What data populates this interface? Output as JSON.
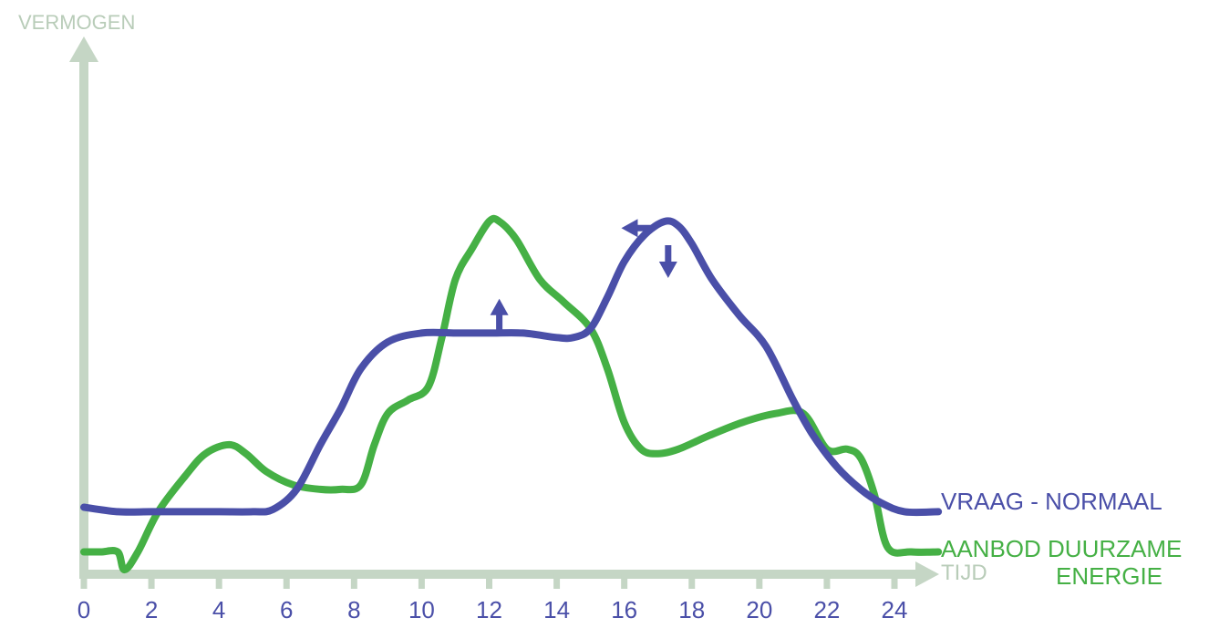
{
  "colors": {
    "axis": "#c5d6c5",
    "axis_text": "#b8ccb8",
    "demand": "#4a4fa8",
    "supply": "#45b045",
    "tick_text": "#4a4fa8"
  },
  "chart_data": {
    "type": "line",
    "title": "",
    "ylabel": "VERMOGEN",
    "xlabel": "TIJD",
    "xlim": [
      0,
      24
    ],
    "ylim": [
      0,
      1
    ],
    "grid": false,
    "legend_placement": "right",
    "x_ticks": [
      0,
      2,
      4,
      6,
      8,
      10,
      12,
      14,
      16,
      18,
      20,
      22,
      24
    ],
    "x_tick_labels": [
      "0",
      "2",
      "4",
      "6",
      "8",
      "10",
      "12",
      "14",
      "16",
      "18",
      "20",
      "22",
      "24"
    ],
    "series": [
      {
        "name": "VRAAG - NORMAAL",
        "color": "#4a4fa8",
        "x": [
          0,
          1,
          2,
          3,
          4,
          5,
          5.6,
          6.3,
          7,
          7.6,
          8.2,
          9,
          10,
          11,
          12,
          13,
          14,
          14.5,
          15,
          15.5,
          16,
          16.6,
          17.2,
          17.6,
          18,
          18.6,
          19.4,
          20.2,
          21,
          21.6,
          22.3,
          23,
          23.6,
          24.3,
          25.3
        ],
        "values": [
          0.15,
          0.14,
          0.14,
          0.14,
          0.14,
          0.14,
          0.145,
          0.19,
          0.29,
          0.37,
          0.46,
          0.52,
          0.54,
          0.54,
          0.54,
          0.54,
          0.53,
          0.53,
          0.55,
          0.62,
          0.7,
          0.76,
          0.79,
          0.78,
          0.74,
          0.66,
          0.58,
          0.51,
          0.39,
          0.31,
          0.24,
          0.19,
          0.16,
          0.14,
          0.14
        ]
      },
      {
        "name": "AANBOD DUURZAME ENERGIE",
        "color": "#45b045",
        "x": [
          0,
          0.5,
          1,
          1.2,
          1.6,
          2.2,
          3,
          3.6,
          4.3,
          4.8,
          5.4,
          6.2,
          7,
          7.6,
          8.2,
          8.6,
          9,
          9.6,
          10.2,
          10.6,
          11,
          11.5,
          12,
          12.3,
          12.8,
          13.5,
          14.2,
          15,
          15.5,
          16,
          16.5,
          17,
          17.6,
          18.5,
          19.5,
          20.5,
          21.3,
          22,
          22.6,
          23,
          23.4,
          23.8,
          24.5,
          25.3
        ],
        "values": [
          0.05,
          0.05,
          0.05,
          0.01,
          0.05,
          0.14,
          0.22,
          0.27,
          0.29,
          0.27,
          0.23,
          0.2,
          0.19,
          0.19,
          0.2,
          0.29,
          0.36,
          0.39,
          0.42,
          0.53,
          0.66,
          0.73,
          0.79,
          0.79,
          0.75,
          0.66,
          0.61,
          0.55,
          0.46,
          0.34,
          0.28,
          0.27,
          0.28,
          0.31,
          0.34,
          0.36,
          0.36,
          0.28,
          0.28,
          0.26,
          0.18,
          0.06,
          0.05,
          0.05
        ]
      }
    ],
    "annotations": [
      {
        "type": "arrow-up",
        "x": 12.3,
        "y": 0.58,
        "color": "#4a4fa8"
      },
      {
        "type": "arrow-left",
        "x": 16.4,
        "y": 0.775,
        "color": "#4a4fa8"
      },
      {
        "type": "arrow-down",
        "x": 17.3,
        "y": 0.7,
        "color": "#4a4fa8"
      }
    ]
  }
}
